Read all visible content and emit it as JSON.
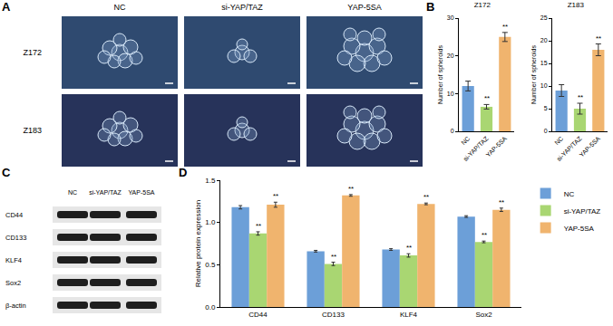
{
  "image_panels": [
    {
      "panel_label": "A",
      "columns": [
        "NC",
        "si-YAP/TAZ",
        "YAP-5SA"
      ],
      "rows": [
        "Z172",
        "Z183"
      ]
    }
  ],
  "chart_data": [
    {
      "panel_label": "B",
      "type": "bar",
      "title": "Z172",
      "y_label": "Number of spheroids",
      "categories": [
        "NC",
        "si-YAP/TAZ",
        "YAP-5SA"
      ],
      "values": [
        12,
        6.5,
        25
      ],
      "errors": [
        1.3,
        0.6,
        1.2
      ],
      "significance": [
        null,
        "**",
        "**"
      ],
      "colors": [
        "#6c9fd8",
        "#a9d672",
        "#f0b46e"
      ],
      "ylim": [
        0,
        30
      ],
      "yticks": [
        0,
        10,
        20,
        30
      ]
    },
    {
      "type": "bar",
      "title": "Z183",
      "y_label": "Number of spheroids",
      "categories": [
        "NC",
        "si-YAP/TAZ",
        "YAP-5SA"
      ],
      "values": [
        9,
        5,
        18
      ],
      "errors": [
        1.3,
        1.2,
        1.3
      ],
      "significance": [
        null,
        "**",
        "**"
      ],
      "colors": [
        "#6c9fd8",
        "#a9d672",
        "#f0b46e"
      ],
      "ylim": [
        0,
        25
      ],
      "yticks": [
        0,
        5,
        10,
        15,
        20,
        25
      ]
    },
    {
      "panel_label": "D",
      "type": "bar",
      "y_label": "Relative protein expression",
      "categories": [
        "CD44",
        "CD133",
        "KLF4",
        "Sox2"
      ],
      "series": [
        {
          "name": "NC",
          "color": "#6c9fd8",
          "values": [
            1.18,
            0.66,
            0.68,
            1.07
          ],
          "errors": [
            0.02,
            0.01,
            0.01,
            0.01
          ]
        },
        {
          "name": "si-YAP/TAZ",
          "color": "#a9d672",
          "values": [
            0.87,
            0.51,
            0.61,
            0.77
          ],
          "errors": [
            0.02,
            0.02,
            0.02,
            0.01
          ],
          "significance": [
            "**",
            "**",
            "**",
            "**"
          ]
        },
        {
          "name": "YAP-5SA",
          "color": "#f0b46e",
          "values": [
            1.21,
            1.32,
            1.22,
            1.15
          ],
          "errors": [
            0.03,
            0.01,
            0.01,
            0.02
          ],
          "significance": [
            "**",
            "**",
            "**",
            "**"
          ]
        }
      ],
      "ylim": [
        0,
        1.5
      ],
      "yticks": [
        {
          "value": 0,
          "label": "0.0"
        },
        {
          "value": 0.5,
          "label": "0.5"
        },
        {
          "value": 1,
          "label": "1.0"
        },
        {
          "value": 1.5,
          "label": "1.5"
        }
      ],
      "legend": "top right"
    }
  ],
  "blot_panels": [
    {
      "panel_label": "C",
      "columns": [
        "NC",
        "si-YAP/TAZ",
        "YAP-5SA"
      ],
      "rows": [
        "CD44",
        "CD133",
        "KLF4",
        "Sox2",
        "β-actin"
      ]
    }
  ]
}
